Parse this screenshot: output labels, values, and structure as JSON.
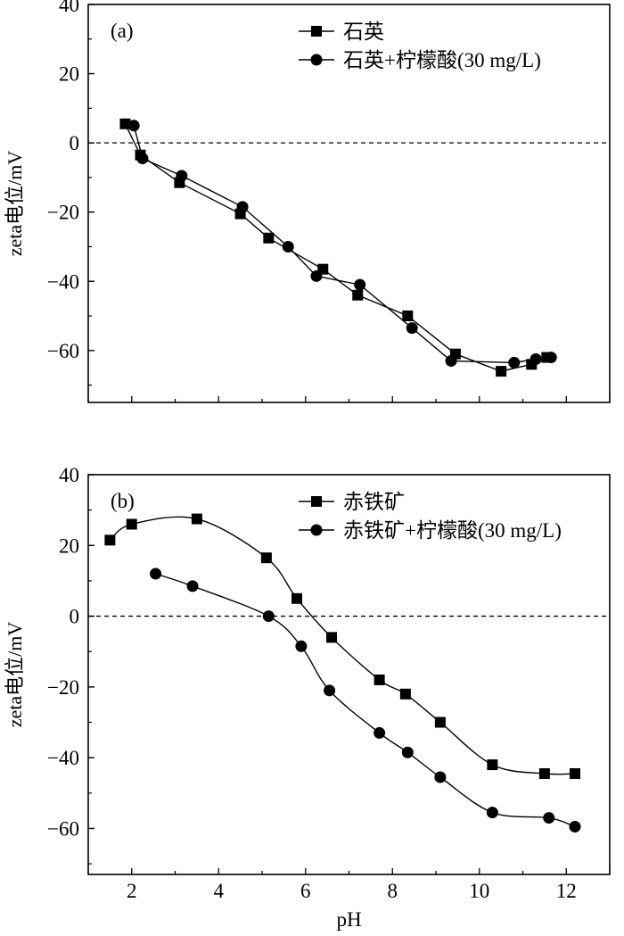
{
  "chart_data": [
    {
      "type": "line",
      "panel_label": "(a)",
      "ylabel": "zeta电位/mV",
      "xlabel": "",
      "xlim": [
        1,
        13
      ],
      "ylim": [
        -75,
        40
      ],
      "yticks": [
        40,
        20,
        0,
        -20,
        -40,
        -60
      ],
      "xticks": [],
      "grid": false,
      "legend_position": "top-right",
      "reference_line": {
        "y": 0,
        "style": "dashed"
      },
      "series": [
        {
          "name": "石英",
          "marker": "square",
          "x": [
            1.85,
            2.2,
            3.1,
            4.5,
            5.15,
            6.4,
            7.2,
            8.35,
            9.45,
            10.5,
            11.2,
            11.55
          ],
          "y": [
            5.5,
            -3.5,
            -11.5,
            -20.5,
            -27.5,
            -36.5,
            -44,
            -50,
            -61,
            -66,
            -64,
            -62
          ]
        },
        {
          "name": "石英+柠檬酸(30 mg/L)",
          "marker": "circle",
          "x": [
            2.05,
            2.25,
            3.15,
            4.55,
            5.6,
            6.25,
            7.25,
            8.45,
            9.35,
            10.8,
            11.3,
            11.65
          ],
          "y": [
            5,
            -4.5,
            -9.5,
            -18.5,
            -30,
            -38.5,
            -41,
            -53.5,
            -63,
            -63.5,
            -62.5,
            -62
          ]
        }
      ]
    },
    {
      "type": "line",
      "panel_label": "(b)",
      "ylabel": "zeta电位/mV",
      "xlabel": "pH",
      "xlim": [
        1,
        13
      ],
      "ylim": [
        -73,
        40
      ],
      "yticks": [
        40,
        20,
        0,
        -20,
        -40,
        -60
      ],
      "xticks": [
        2,
        4,
        6,
        8,
        10,
        12
      ],
      "grid": false,
      "legend_position": "top-right",
      "reference_line": {
        "y": 0,
        "style": "dashed"
      },
      "series": [
        {
          "name": "赤铁矿",
          "marker": "square",
          "x": [
            1.5,
            2.0,
            3.5,
            5.1,
            5.8,
            6.6,
            7.7,
            8.3,
            9.1,
            10.3,
            11.5,
            12.2
          ],
          "y": [
            21.5,
            26,
            27.5,
            16.5,
            5,
            -6,
            -18,
            -22,
            -30,
            -42,
            -44.5,
            -44.5
          ]
        },
        {
          "name": "赤铁矿+柠檬酸(30 mg/L)",
          "marker": "circle",
          "x": [
            2.55,
            3.4,
            5.15,
            5.9,
            6.55,
            7.7,
            8.35,
            9.1,
            10.3,
            11.6,
            12.2
          ],
          "y": [
            12,
            8.5,
            0,
            -8.5,
            -21,
            -33,
            -38.5,
            -45.5,
            -55.5,
            -57,
            -59.5
          ]
        }
      ]
    }
  ]
}
